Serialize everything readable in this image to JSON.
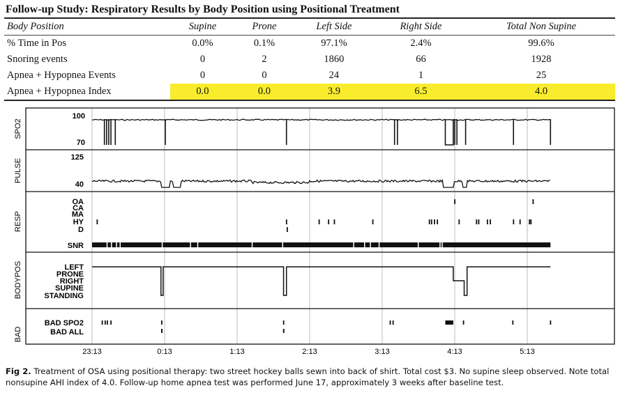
{
  "title": "Follow-up Study: Respiratory Results by Body Position using Positional Treatment",
  "table": {
    "headers": [
      "Body Position",
      "Supine",
      "Prone",
      "Left Side",
      "Right Side",
      "Total Non Supine"
    ],
    "rows": [
      [
        "% Time in Pos",
        "0.0%",
        "0.1%",
        "97.1%",
        "2.4%",
        "99.6%"
      ],
      [
        "Snoring events",
        "0",
        "2",
        "1860",
        "66",
        "1928"
      ],
      [
        "Apnea + Hypopnea Events",
        "0",
        "0",
        "24",
        "1",
        "25"
      ],
      [
        "Apnea + Hypopnea Index",
        "0.0",
        "0.0",
        "3.9",
        "6.5",
        "4.0"
      ]
    ],
    "highlight_color": "#f9ec2c"
  },
  "chart_data": {
    "type": "line",
    "x_unit": "hours since 23:13",
    "time_ticks": [
      "23:13",
      "0:13",
      "1:13",
      "2:13",
      "3:13",
      "4:13",
      "5:13"
    ],
    "end_hours": 6.32,
    "panels": {
      "spo2": {
        "label": "SPO2",
        "ticks": [
          "100",
          "70"
        ],
        "range": [
          70,
          100
        ],
        "baseline": 97,
        "drops": [
          0.17,
          0.2,
          0.23,
          0.26,
          0.32,
          1.01,
          2.68,
          4.17,
          4.21,
          5.0,
          5.03,
          5.15,
          5.81,
          6.32
        ],
        "low_block": [
          4.87,
          4.98
        ]
      },
      "pulse": {
        "label": "PULSE",
        "ticks": [
          "125",
          "40"
        ],
        "range": [
          40,
          125
        ],
        "baseline": 55,
        "dips": [
          [
            0.96,
            1.07
          ],
          [
            1.12,
            1.22
          ],
          [
            4.84,
            4.98
          ],
          [
            5.1,
            5.16
          ]
        ]
      },
      "resp": {
        "label": "RESP",
        "rows": [
          "OA",
          "CA",
          "MA",
          "HY",
          "D"
        ],
        "snr_label": "SNR",
        "OA": [
          5.0,
          6.08
        ],
        "CA": [],
        "MA": [],
        "HY": [
          0.07,
          2.68,
          3.13,
          3.26,
          3.34,
          3.87,
          4.65,
          4.68,
          4.72,
          4.76,
          5.06,
          5.3,
          5.33,
          5.45,
          5.49,
          5.81,
          5.9,
          6.03,
          6.05
        ],
        "D": [
          2.69
        ],
        "snr_gaps": [
          0.2,
          0.26,
          0.33,
          0.38,
          0.96,
          1.35,
          1.45,
          2.2,
          2.62,
          3.6,
          3.75,
          3.83,
          3.95,
          4.49,
          4.79,
          4.82
        ]
      },
      "bodypos": {
        "label": "BODYPOS",
        "levels": [
          "LEFT",
          "PRONE",
          "RIGHT",
          "SUPINE",
          "STANDING"
        ],
        "segments": [
          [
            0,
            "LEFT"
          ],
          [
            0.95,
            "STANDING"
          ],
          [
            0.98,
            "LEFT"
          ],
          [
            2.64,
            "STANDING"
          ],
          [
            2.68,
            "LEFT"
          ],
          [
            4.98,
            "RIGHT"
          ],
          [
            5.13,
            "STANDING"
          ],
          [
            5.17,
            "LEFT"
          ],
          [
            6.32,
            "LEFT"
          ]
        ]
      },
      "bad": {
        "label": "BAD",
        "rows": [
          "BAD  SPO2",
          "BAD  ALL"
        ],
        "spo2": [
          0.14,
          0.18,
          0.21,
          0.26,
          0.96,
          2.64,
          4.11,
          4.15,
          5.12,
          5.8,
          6.32
        ],
        "spo2_block": [
          4.87,
          4.98
        ],
        "all": [
          0.96,
          2.64
        ]
      }
    }
  },
  "caption": {
    "label": "Fig 2.",
    "text": " Treatment of OSA using positional therapy: two street hockey balls sewn into back of shirt. Total cost $3. No supine sleep observed. Note total nonsupine AHI index of 4.0. Follow-up home apnea test was performed June 17, approximately 3 weeks after baseline test."
  }
}
